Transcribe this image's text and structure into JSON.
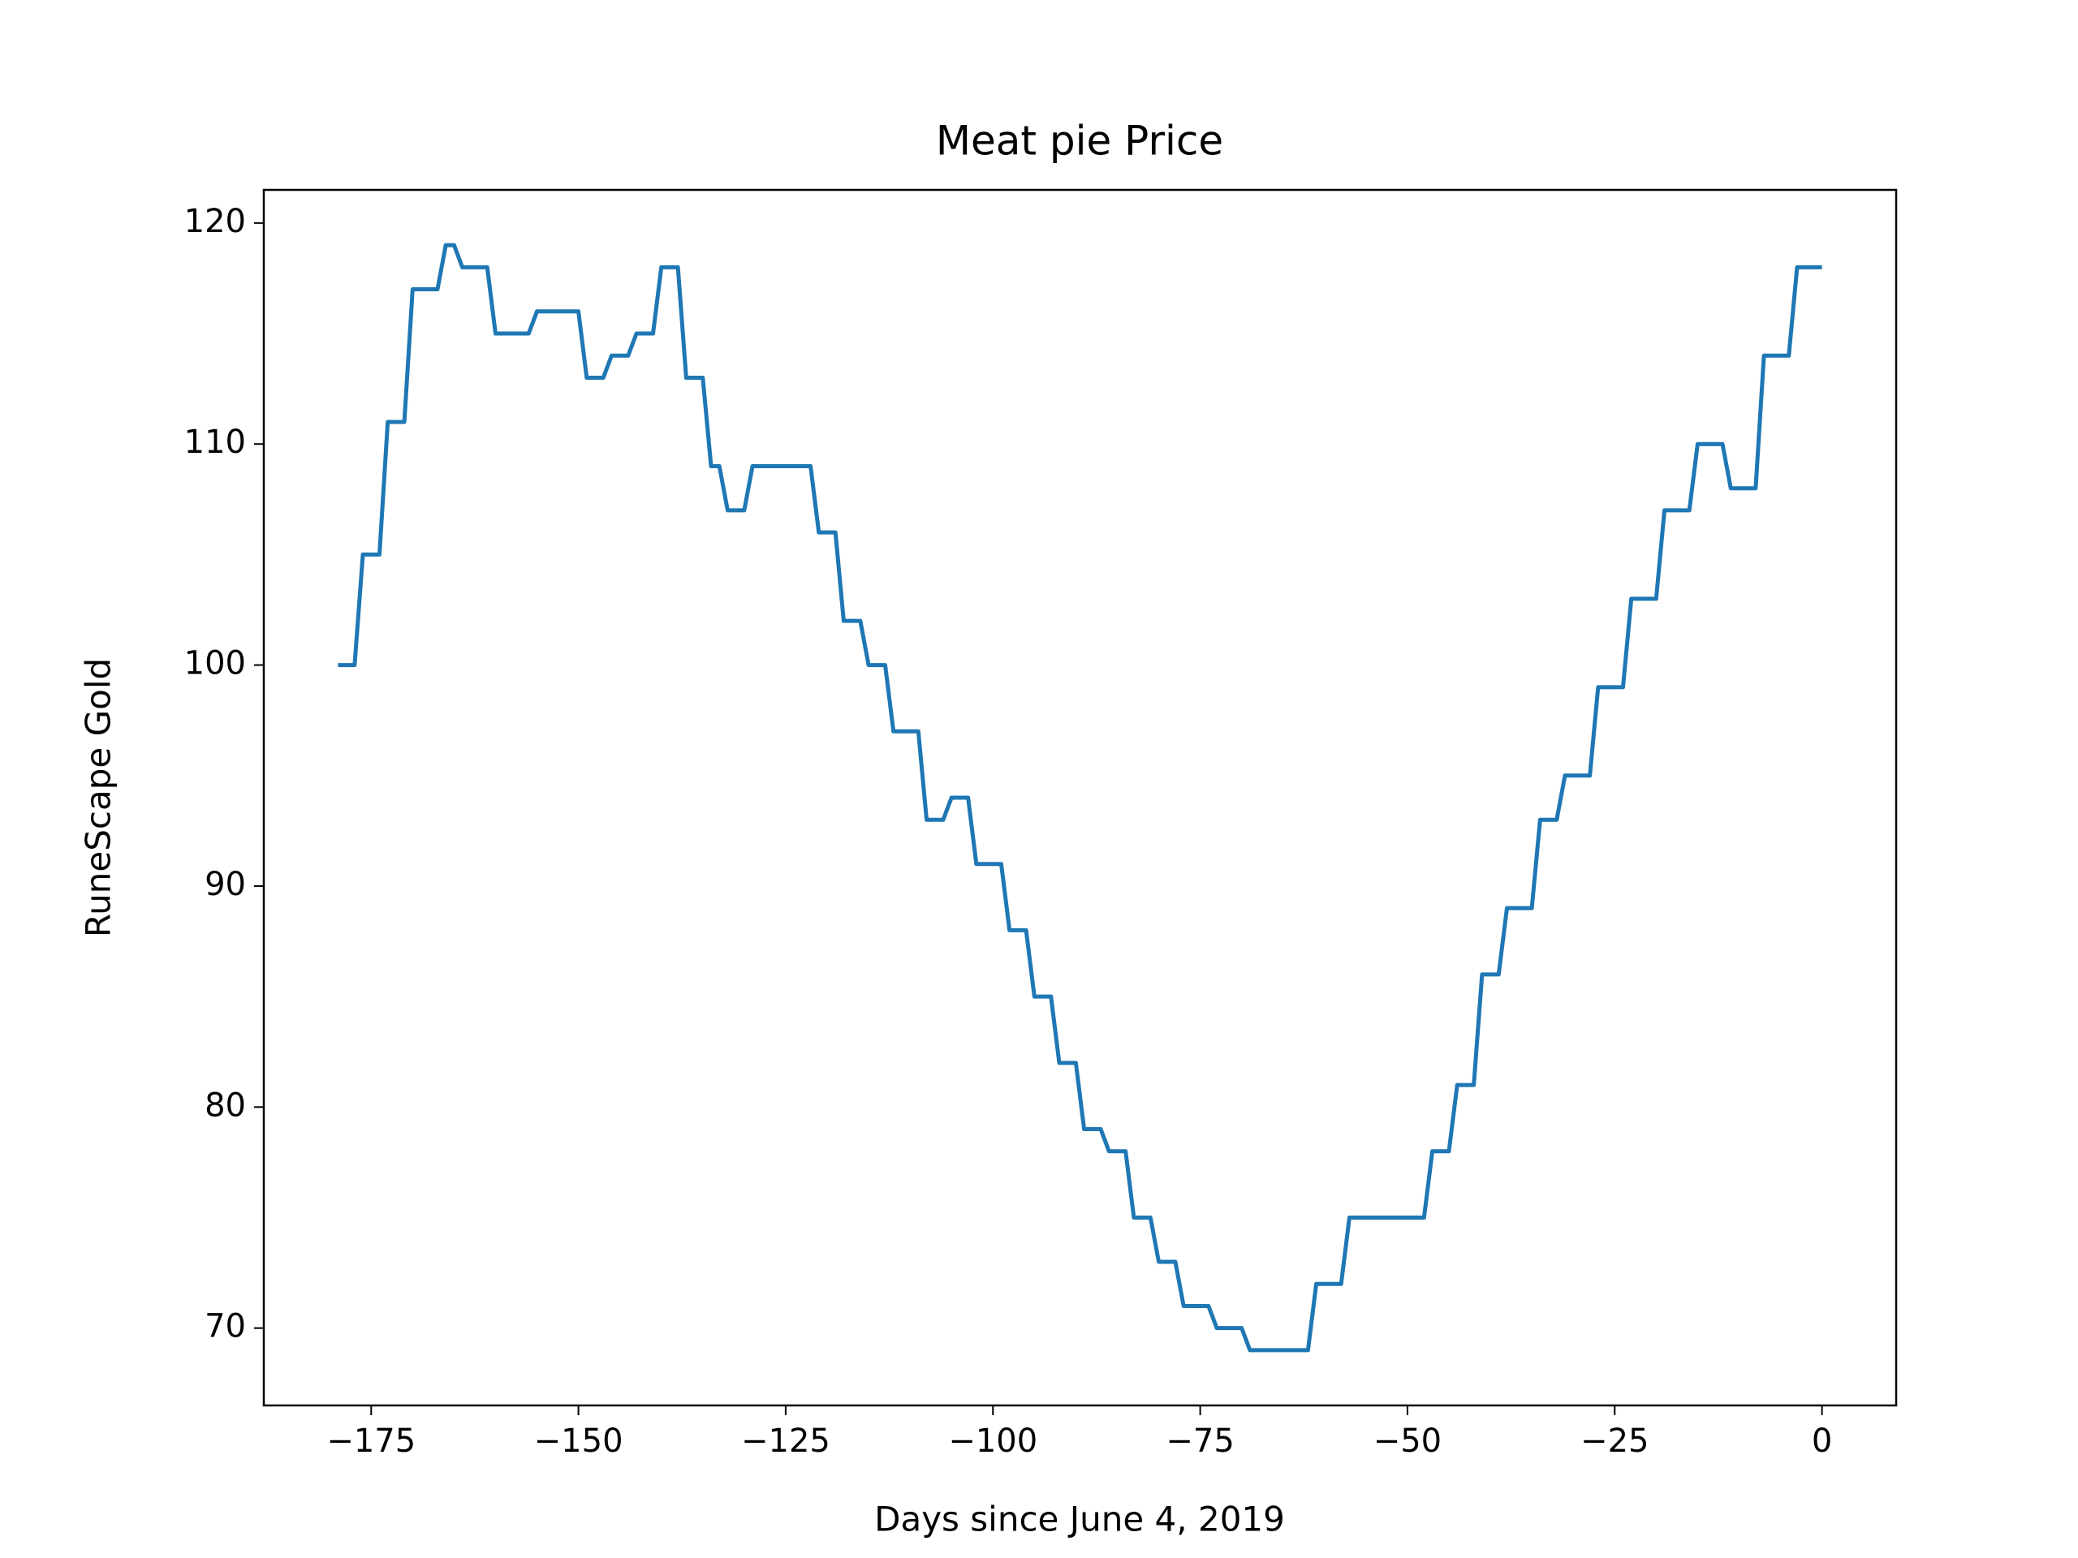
{
  "chart_data": {
    "type": "line",
    "title": "Meat pie Price",
    "x_label": "Days since June 4, 2019",
    "y_label": "RuneScape Gold",
    "color": "#1f77b4",
    "x": [
      -179,
      -178,
      -177,
      -176,
      -175,
      -174,
      -173,
      -172,
      -171,
      -170,
      -169,
      -168,
      -167,
      -166,
      -165,
      -164,
      -163,
      -162,
      -161,
      -160,
      -159,
      -158,
      -157,
      -156,
      -155,
      -154,
      -153,
      -152,
      -151,
      -150,
      -149,
      -148,
      -147,
      -146,
      -145,
      -144,
      -143,
      -142,
      -141,
      -140,
      -139,
      -138,
      -137,
      -136,
      -135,
      -134,
      -133,
      -132,
      -131,
      -130,
      -129,
      -128,
      -127,
      -126,
      -125,
      -124,
      -123,
      -122,
      -121,
      -120,
      -119,
      -118,
      -117,
      -116,
      -115,
      -114,
      -113,
      -112,
      -111,
      -110,
      -109,
      -108,
      -107,
      -106,
      -105,
      -104,
      -103,
      -102,
      -101,
      -100,
      -99,
      -98,
      -97,
      -96,
      -95,
      -94,
      -93,
      -92,
      -91,
      -90,
      -89,
      -88,
      -87,
      -86,
      -85,
      -84,
      -83,
      -82,
      -81,
      -80,
      -79,
      -78,
      -77,
      -76,
      -75,
      -74,
      -73,
      -72,
      -71,
      -70,
      -69,
      -68,
      -67,
      -66,
      -65,
      -64,
      -63,
      -62,
      -61,
      -60,
      -59,
      -58,
      -57,
      -56,
      -55,
      -54,
      -53,
      -52,
      -51,
      -50,
      -49,
      -48,
      -47,
      -46,
      -45,
      -44,
      -43,
      -42,
      -41,
      -40,
      -39,
      -38,
      -37,
      -36,
      -35,
      -34,
      -33,
      -32,
      -31,
      -30,
      -29,
      -28,
      -27,
      -26,
      -25,
      -24,
      -23,
      -22,
      -21,
      -20,
      -19,
      -18,
      -17,
      -16,
      -15,
      -14,
      -13,
      -12,
      -11,
      -10,
      -9,
      -8,
      -7,
      -6,
      -5,
      -4,
      -3,
      -2,
      -1,
      0
    ],
    "values": [
      100,
      100,
      100,
      105,
      105,
      105,
      111,
      111,
      111,
      117,
      117,
      117,
      117,
      119,
      119,
      118,
      118,
      118,
      118,
      115,
      115,
      115,
      115,
      115,
      116,
      116,
      116,
      116,
      116,
      116,
      113,
      113,
      113,
      114,
      114,
      114,
      115,
      115,
      115,
      118,
      118,
      118,
      113,
      113,
      113,
      109,
      109,
      107,
      107,
      107,
      109,
      109,
      109,
      109,
      109,
      109,
      109,
      109,
      106,
      106,
      106,
      102,
      102,
      102,
      100,
      100,
      100,
      97,
      97,
      97,
      97,
      93,
      93,
      93,
      94,
      94,
      94,
      91,
      91,
      91,
      91,
      88,
      88,
      88,
      85,
      85,
      85,
      82,
      82,
      82,
      79,
      79,
      79,
      78,
      78,
      78,
      75,
      75,
      75,
      73,
      73,
      73,
      71,
      71,
      71,
      71,
      70,
      70,
      70,
      70,
      69,
      69,
      69,
      69,
      69,
      69,
      69,
      69,
      72,
      72,
      72,
      72,
      75,
      75,
      75,
      75,
      75,
      75,
      75,
      75,
      75,
      75,
      78,
      78,
      78,
      81,
      81,
      81,
      86,
      86,
      86,
      89,
      89,
      89,
      89,
      93,
      93,
      93,
      95,
      95,
      95,
      95,
      99,
      99,
      99,
      99,
      103,
      103,
      103,
      103,
      107,
      107,
      107,
      107,
      110,
      110,
      110,
      110,
      108,
      108,
      108,
      108,
      114,
      114,
      114,
      114,
      118,
      118,
      118,
      118
    ],
    "xlim": [
      -187.95,
      8.95
    ],
    "ylim": [
      66.5,
      121.5
    ],
    "xticks": [
      {
        "value": -175,
        "label": "−175"
      },
      {
        "value": -150,
        "label": "−150"
      },
      {
        "value": -125,
        "label": "−125"
      },
      {
        "value": -100,
        "label": "−100"
      },
      {
        "value": -75,
        "label": "−75"
      },
      {
        "value": -50,
        "label": "−50"
      },
      {
        "value": -25,
        "label": "−25"
      },
      0
    ],
    "yticks": [
      70,
      80,
      90,
      100,
      110,
      120
    ],
    "grid": false
  }
}
